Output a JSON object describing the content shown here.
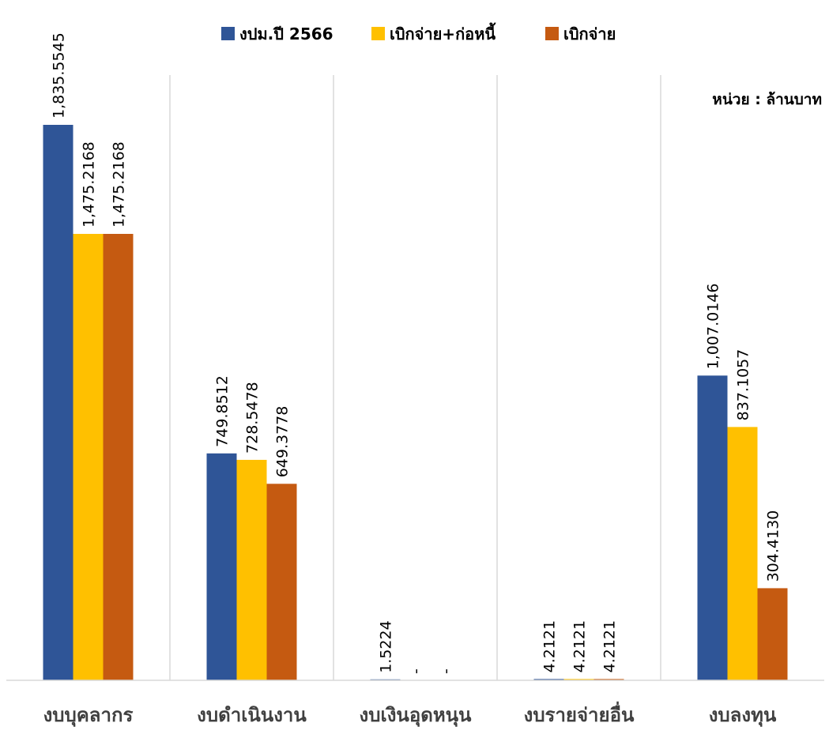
{
  "chart_data": {
    "type": "bar",
    "categories": [
      "งบบุคลากร",
      "งบดำเนินงาน",
      "งบเงินอุดหนุน",
      "งบรายจ่ายอื่น",
      "งบลงทุน"
    ],
    "series": [
      {
        "name": "งปม.ปี 2566",
        "color": "#2F5597",
        "values": [
          1835.5545,
          749.8512,
          1.5224,
          4.2121,
          1007.0146
        ],
        "labels": [
          "1,835.5545",
          "749.8512",
          "1.5224",
          "4.2121",
          "1,007.0146"
        ]
      },
      {
        "name": "เบิกจ่าย+ก่อหนี้",
        "color": "#FFC000",
        "values": [
          1475.2168,
          728.5478,
          0,
          4.2121,
          837.1057
        ],
        "labels": [
          "1,475.2168",
          "728.5478",
          "-",
          "4.2121",
          "837.1057"
        ]
      },
      {
        "name": "เบิกจ่าย",
        "color": "#C55A11",
        "values": [
          1475.2168,
          649.3778,
          0,
          4.2121,
          304.413
        ],
        "labels": [
          "1,475.2168",
          "649.3778",
          "-",
          "4.2121",
          "304.4130"
        ]
      }
    ],
    "unit_note": "หน่วย : ล้านบาท",
    "legend_position": "top-center",
    "grid": false,
    "category_separators": true,
    "ylim": [
      0,
      1835.5545
    ]
  }
}
